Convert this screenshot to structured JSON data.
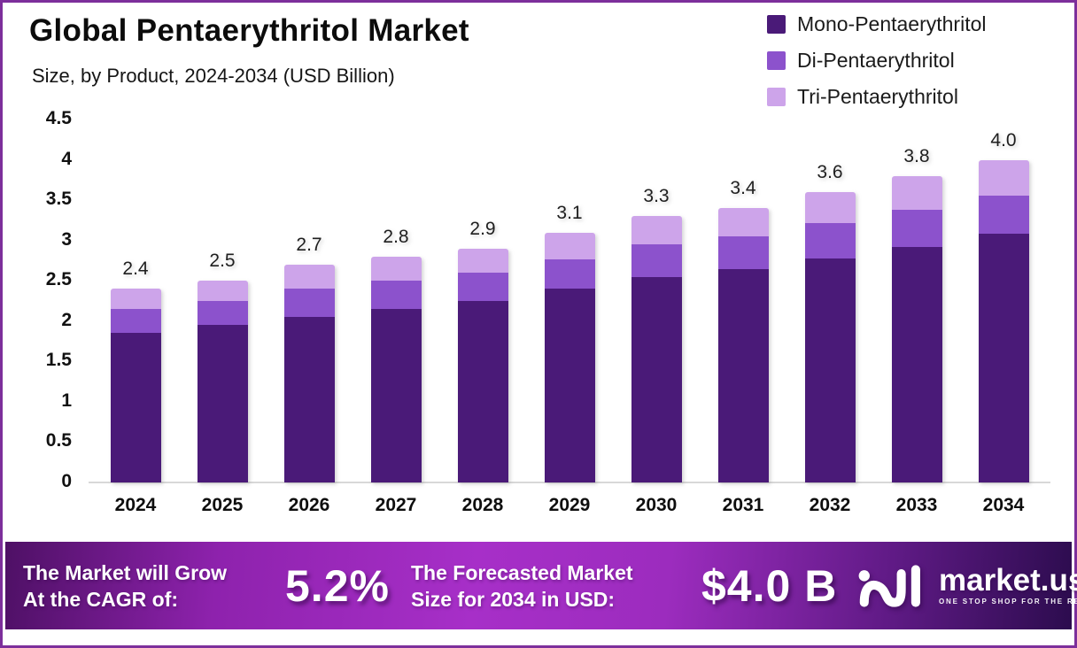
{
  "header": {
    "title": "Global Pentaerythritol Market",
    "subtitle": "Size, by Product, 2024-2034 (USD Billion)"
  },
  "legend": [
    {
      "label": "Mono-Pentaerythritol",
      "color": "#4a1a78"
    },
    {
      "label": "Di-Pentaerythritol",
      "color": "#8c52cc"
    },
    {
      "label": "Tri-Pentaerythritol",
      "color": "#cda4ea"
    }
  ],
  "chart_data": {
    "type": "bar",
    "stacked": true,
    "title": "Global Pentaerythritol Market",
    "subtitle": "Size, by Product, 2024-2034 (USD Billion)",
    "unit": "USD Billion",
    "categories": [
      "2024",
      "2025",
      "2026",
      "2027",
      "2028",
      "2029",
      "2030",
      "2031",
      "2032",
      "2033",
      "2034"
    ],
    "series": [
      {
        "name": "Mono-Pentaerythritol",
        "key": "mono",
        "color": "#4a1a78",
        "values": [
          1.85,
          1.95,
          2.05,
          2.15,
          2.25,
          2.4,
          2.55,
          2.65,
          2.78,
          2.92,
          3.08
        ]
      },
      {
        "name": "Di-Pentaerythritol",
        "key": "di",
        "color": "#8c52cc",
        "values": [
          0.3,
          0.3,
          0.35,
          0.35,
          0.35,
          0.37,
          0.4,
          0.4,
          0.44,
          0.46,
          0.48
        ]
      },
      {
        "name": "Tri-Pentaerythritol",
        "key": "tri",
        "color": "#cda4ea",
        "values": [
          0.25,
          0.25,
          0.3,
          0.3,
          0.3,
          0.33,
          0.35,
          0.35,
          0.38,
          0.42,
          0.44
        ]
      }
    ],
    "totals": [
      2.4,
      2.5,
      2.7,
      2.8,
      2.9,
      3.1,
      3.3,
      3.4,
      3.6,
      3.8,
      4.0
    ],
    "total_labels": [
      "2.4",
      "2.5",
      "2.7",
      "2.8",
      "2.9",
      "3.1",
      "3.3",
      "3.4",
      "3.6",
      "3.8",
      "4.0"
    ],
    "ylim": [
      0,
      4.5
    ],
    "yticks": [
      "4.5",
      "4",
      "3.5",
      "3",
      "2.5",
      "2",
      "1.5",
      "1",
      "0.5",
      "0"
    ],
    "grid": false,
    "legend_position": "top-right"
  },
  "footer": {
    "cagr_label_line1": "The Market will Grow",
    "cagr_label_line2": "At the CAGR of:",
    "cagr_value": "5.2%",
    "forecast_label_line1": "The Forecasted Market",
    "forecast_label_line2": "Size for 2034 in USD:",
    "forecast_value": "$4.0 B",
    "brand": {
      "name": "market.us",
      "tagline": "ONE STOP SHOP FOR THE REPORTS",
      "icon": "marketus-wave-logo"
    }
  }
}
